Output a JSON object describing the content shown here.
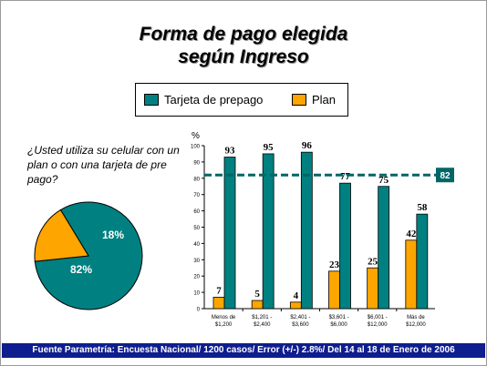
{
  "title": {
    "line1": "Forma de pago elegida",
    "line2": "según Ingreso"
  },
  "question": "¿Usted utiliza su celular con un plan o con una tarjeta de pre pago?",
  "footer": "Fuente Parametría: Encuesta Nacional/ 1200 casos/ Error (+/-) 2.8%/ Del 14 al 18 de Enero de 2006",
  "colors": {
    "teal": "#008080",
    "orange": "#ffa500",
    "reference_line": "#006666",
    "footer_bg": "#0e1e8e"
  },
  "chart_data": [
    {
      "type": "pie",
      "categories": [
        "Tarjeta de prepago",
        "Plan"
      ],
      "values": [
        82,
        18
      ],
      "labels": [
        "82%",
        "18%"
      ]
    },
    {
      "type": "bar",
      "ylabel": "%",
      "ylim": [
        0,
        100
      ],
      "yticks": [
        0,
        10,
        20,
        30,
        40,
        50,
        60,
        70,
        80,
        90,
        100
      ],
      "categories": [
        [
          "Menos de",
          "$1,200"
        ],
        [
          "$1,201 -",
          "$2,400"
        ],
        [
          "$2,401 -",
          "$3,600"
        ],
        [
          "$3,601 -",
          "$6,000"
        ],
        [
          "$6,001 -",
          "$12,000"
        ],
        [
          "Más de",
          "$12,000"
        ]
      ],
      "series": [
        {
          "name": "Tarjeta de prepago",
          "values": [
            93,
            95,
            96,
            77,
            75,
            58
          ]
        },
        {
          "name": "Plan",
          "values": [
            7,
            5,
            4,
            23,
            25,
            42
          ]
        }
      ],
      "reference_line": {
        "value": 82,
        "label": "82"
      },
      "legend_position": "top-center",
      "grid": false
    }
  ]
}
